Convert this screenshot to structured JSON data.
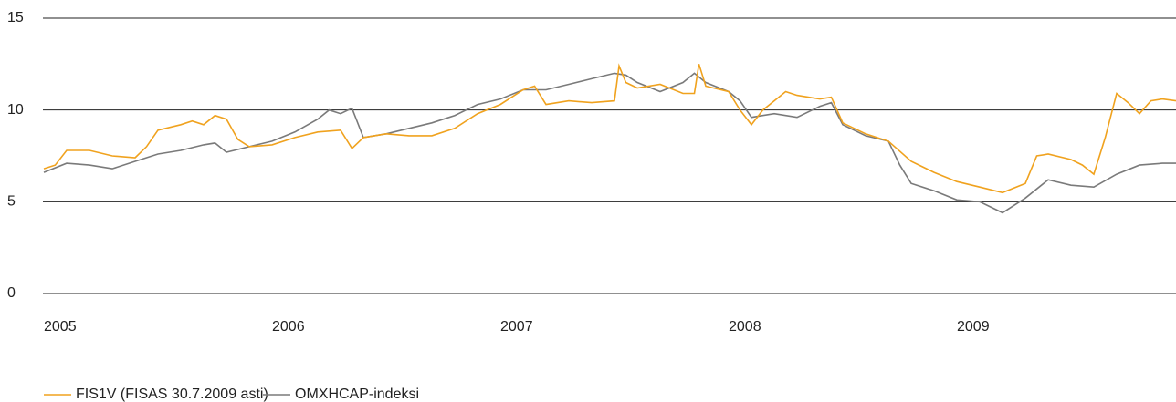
{
  "chart_data": {
    "type": "line",
    "xlim": [
      2005,
      2009.96
    ],
    "xticks": [
      2005,
      2006,
      2007,
      2008,
      2009
    ],
    "ylim": [
      0,
      15
    ],
    "yticks": [
      0,
      5,
      10,
      15
    ],
    "grid": true,
    "series": [
      {
        "name": "FIS1V (FISAS 30.7.2009 asti)",
        "color": "#f0a21e",
        "x": [
          2005.0,
          2005.05,
          2005.1,
          2005.2,
          2005.3,
          2005.4,
          2005.45,
          2005.5,
          2005.6,
          2005.65,
          2005.7,
          2005.75,
          2005.8,
          2005.85,
          2005.9,
          2006.0,
          2006.1,
          2006.2,
          2006.3,
          2006.35,
          2006.4,
          2006.5,
          2006.6,
          2006.7,
          2006.8,
          2006.9,
          2007.0,
          2007.1,
          2007.15,
          2007.2,
          2007.3,
          2007.4,
          2007.5,
          2007.52,
          2007.55,
          2007.6,
          2007.7,
          2007.8,
          2007.85,
          2007.87,
          2007.9,
          2008.0,
          2008.05,
          2008.1,
          2008.15,
          2008.2,
          2008.25,
          2008.3,
          2008.4,
          2008.45,
          2008.5,
          2008.6,
          2008.7,
          2008.8,
          2008.9,
          2009.0,
          2009.1,
          2009.2,
          2009.3,
          2009.35,
          2009.4,
          2009.5,
          2009.55,
          2009.6,
          2009.65,
          2009.7,
          2009.75,
          2009.8,
          2009.85,
          2009.9,
          2009.96
        ],
        "values": [
          6.8,
          7.0,
          7.8,
          7.8,
          7.5,
          7.4,
          8.0,
          8.9,
          9.2,
          9.4,
          9.2,
          9.7,
          9.5,
          8.4,
          8.0,
          8.1,
          8.5,
          8.8,
          8.9,
          7.9,
          8.5,
          8.7,
          8.6,
          8.6,
          9.0,
          9.8,
          10.3,
          11.1,
          11.3,
          10.3,
          10.5,
          10.4,
          10.5,
          12.4,
          11.5,
          11.2,
          11.4,
          10.9,
          10.9,
          12.5,
          11.3,
          11.0,
          10.0,
          9.2,
          10.0,
          10.5,
          11.0,
          10.8,
          10.6,
          10.7,
          9.3,
          8.7,
          8.3,
          7.2,
          6.6,
          6.1,
          5.8,
          5.5,
          6.0,
          7.5,
          7.6,
          7.3,
          7.0,
          6.5,
          8.5,
          10.9,
          10.4,
          9.8,
          10.5,
          10.6,
          10.5
        ]
      },
      {
        "name": "OMXHCAP-indeksi",
        "color": "#7a7a7a",
        "x": [
          2005.0,
          2005.1,
          2005.2,
          2005.3,
          2005.4,
          2005.5,
          2005.6,
          2005.7,
          2005.75,
          2005.8,
          2005.9,
          2006.0,
          2006.1,
          2006.2,
          2006.25,
          2006.3,
          2006.35,
          2006.4,
          2006.5,
          2006.6,
          2006.7,
          2006.8,
          2006.9,
          2007.0,
          2007.1,
          2007.2,
          2007.3,
          2007.4,
          2007.5,
          2007.55,
          2007.6,
          2007.7,
          2007.8,
          2007.85,
          2007.9,
          2008.0,
          2008.05,
          2008.1,
          2008.2,
          2008.3,
          2008.4,
          2008.45,
          2008.5,
          2008.6,
          2008.7,
          2008.75,
          2008.8,
          2008.9,
          2009.0,
          2009.1,
          2009.2,
          2009.3,
          2009.4,
          2009.5,
          2009.6,
          2009.7,
          2009.8,
          2009.9,
          2009.96
        ],
        "values": [
          6.6,
          7.1,
          7.0,
          6.8,
          7.2,
          7.6,
          7.8,
          8.1,
          8.2,
          7.7,
          8.0,
          8.3,
          8.8,
          9.5,
          10.0,
          9.8,
          10.1,
          8.5,
          8.7,
          9.0,
          9.3,
          9.7,
          10.3,
          10.6,
          11.1,
          11.1,
          11.4,
          11.7,
          12.0,
          11.9,
          11.5,
          11.0,
          11.5,
          12.0,
          11.5,
          11.0,
          10.5,
          9.6,
          9.8,
          9.6,
          10.2,
          10.4,
          9.2,
          8.6,
          8.3,
          7.0,
          6.0,
          5.6,
          5.1,
          5.0,
          4.4,
          5.2,
          6.2,
          5.9,
          5.8,
          6.5,
          7.0,
          7.1,
          7.1
        ]
      }
    ]
  }
}
